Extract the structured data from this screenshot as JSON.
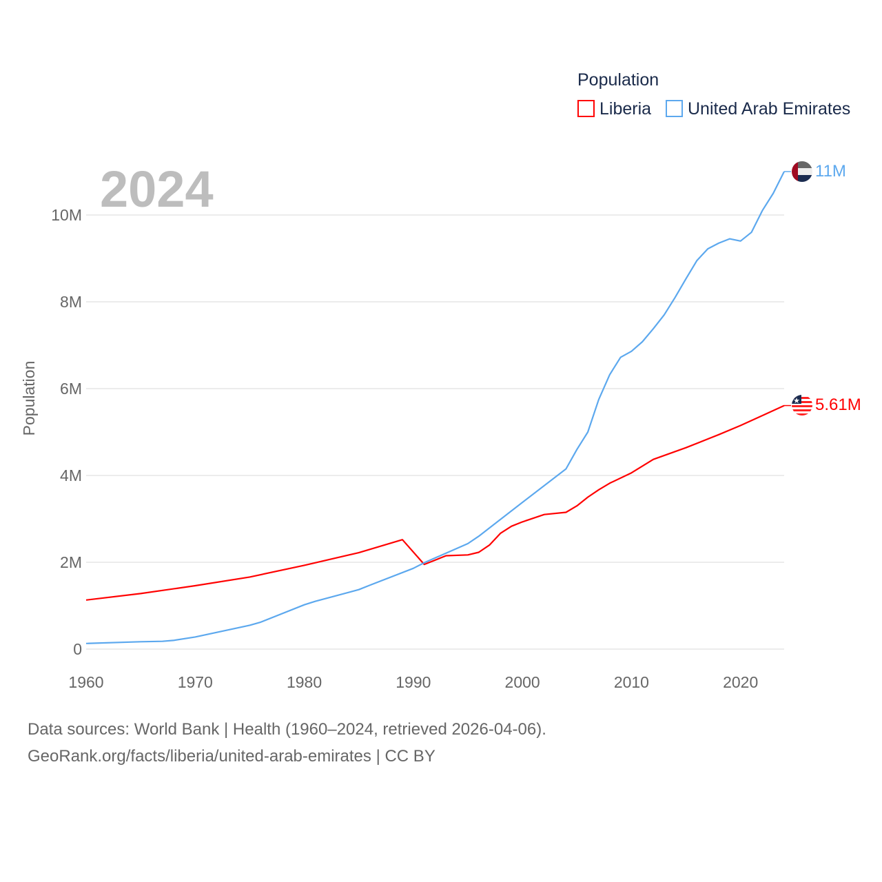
{
  "chart_data": {
    "type": "line",
    "title": "Population",
    "year_label": "2024",
    "xlabel": "",
    "ylabel": "Population",
    "xlim": [
      1960,
      2024
    ],
    "ylim": [
      0,
      10000000
    ],
    "grid": true,
    "legend_placement": "top-right",
    "x_ticks": [
      1960,
      1970,
      1980,
      1990,
      2000,
      2010,
      2020
    ],
    "y_ticks": [
      {
        "v": 0,
        "label": "0"
      },
      {
        "v": 2000000,
        "label": "2M"
      },
      {
        "v": 4000000,
        "label": "4M"
      },
      {
        "v": 6000000,
        "label": "6M"
      },
      {
        "v": 8000000,
        "label": "8M"
      },
      {
        "v": 10000000,
        "label": "10M"
      }
    ],
    "series": [
      {
        "name": "Liberia",
        "color": "#ff0000",
        "end_label": "5.61M",
        "flag": "liberia-flag",
        "points": [
          [
            1960,
            1130000
          ],
          [
            1965,
            1280000
          ],
          [
            1970,
            1460000
          ],
          [
            1975,
            1660000
          ],
          [
            1980,
            1930000
          ],
          [
            1985,
            2220000
          ],
          [
            1989,
            2520000
          ],
          [
            1991,
            1950000
          ],
          [
            1993,
            2150000
          ],
          [
            1995,
            2170000
          ],
          [
            1996,
            2230000
          ],
          [
            1997,
            2400000
          ],
          [
            1998,
            2670000
          ],
          [
            1999,
            2830000
          ],
          [
            2000,
            2930000
          ],
          [
            2002,
            3100000
          ],
          [
            2004,
            3150000
          ],
          [
            2005,
            3300000
          ],
          [
            2006,
            3500000
          ],
          [
            2007,
            3670000
          ],
          [
            2008,
            3820000
          ],
          [
            2010,
            4060000
          ],
          [
            2012,
            4370000
          ],
          [
            2015,
            4640000
          ],
          [
            2018,
            4940000
          ],
          [
            2020,
            5150000
          ],
          [
            2022,
            5380000
          ],
          [
            2024,
            5610000
          ]
        ]
      },
      {
        "name": "United Arab Emirates",
        "color": "#5ca8ee",
        "end_label": "11M",
        "flag": "uae-flag",
        "points": [
          [
            1960,
            130000
          ],
          [
            1965,
            170000
          ],
          [
            1967,
            180000
          ],
          [
            1968,
            200000
          ],
          [
            1970,
            280000
          ],
          [
            1975,
            550000
          ],
          [
            1976,
            620000
          ],
          [
            1980,
            1020000
          ],
          [
            1981,
            1100000
          ],
          [
            1985,
            1370000
          ],
          [
            1986,
            1470000
          ],
          [
            1990,
            1860000
          ],
          [
            1991,
            1990000
          ],
          [
            1995,
            2430000
          ],
          [
            1996,
            2600000
          ],
          [
            2000,
            3380000
          ],
          [
            2004,
            4150000
          ],
          [
            2005,
            4600000
          ],
          [
            2006,
            5000000
          ],
          [
            2007,
            5750000
          ],
          [
            2008,
            6320000
          ],
          [
            2009,
            6720000
          ],
          [
            2010,
            6860000
          ],
          [
            2011,
            7080000
          ],
          [
            2012,
            7380000
          ],
          [
            2013,
            7700000
          ],
          [
            2014,
            8100000
          ],
          [
            2015,
            8530000
          ],
          [
            2016,
            8950000
          ],
          [
            2017,
            9220000
          ],
          [
            2018,
            9350000
          ],
          [
            2019,
            9450000
          ],
          [
            2020,
            9400000
          ],
          [
            2021,
            9600000
          ],
          [
            2022,
            10100000
          ],
          [
            2023,
            10500000
          ],
          [
            2024,
            11000000
          ]
        ]
      }
    ]
  },
  "footer": {
    "line1": "Data sources: World Bank | Health (1960–2024, retrieved 2026-04-06).",
    "line2": "GeoRank.org/facts/liberia/united-arab-emirates | CC BY"
  }
}
